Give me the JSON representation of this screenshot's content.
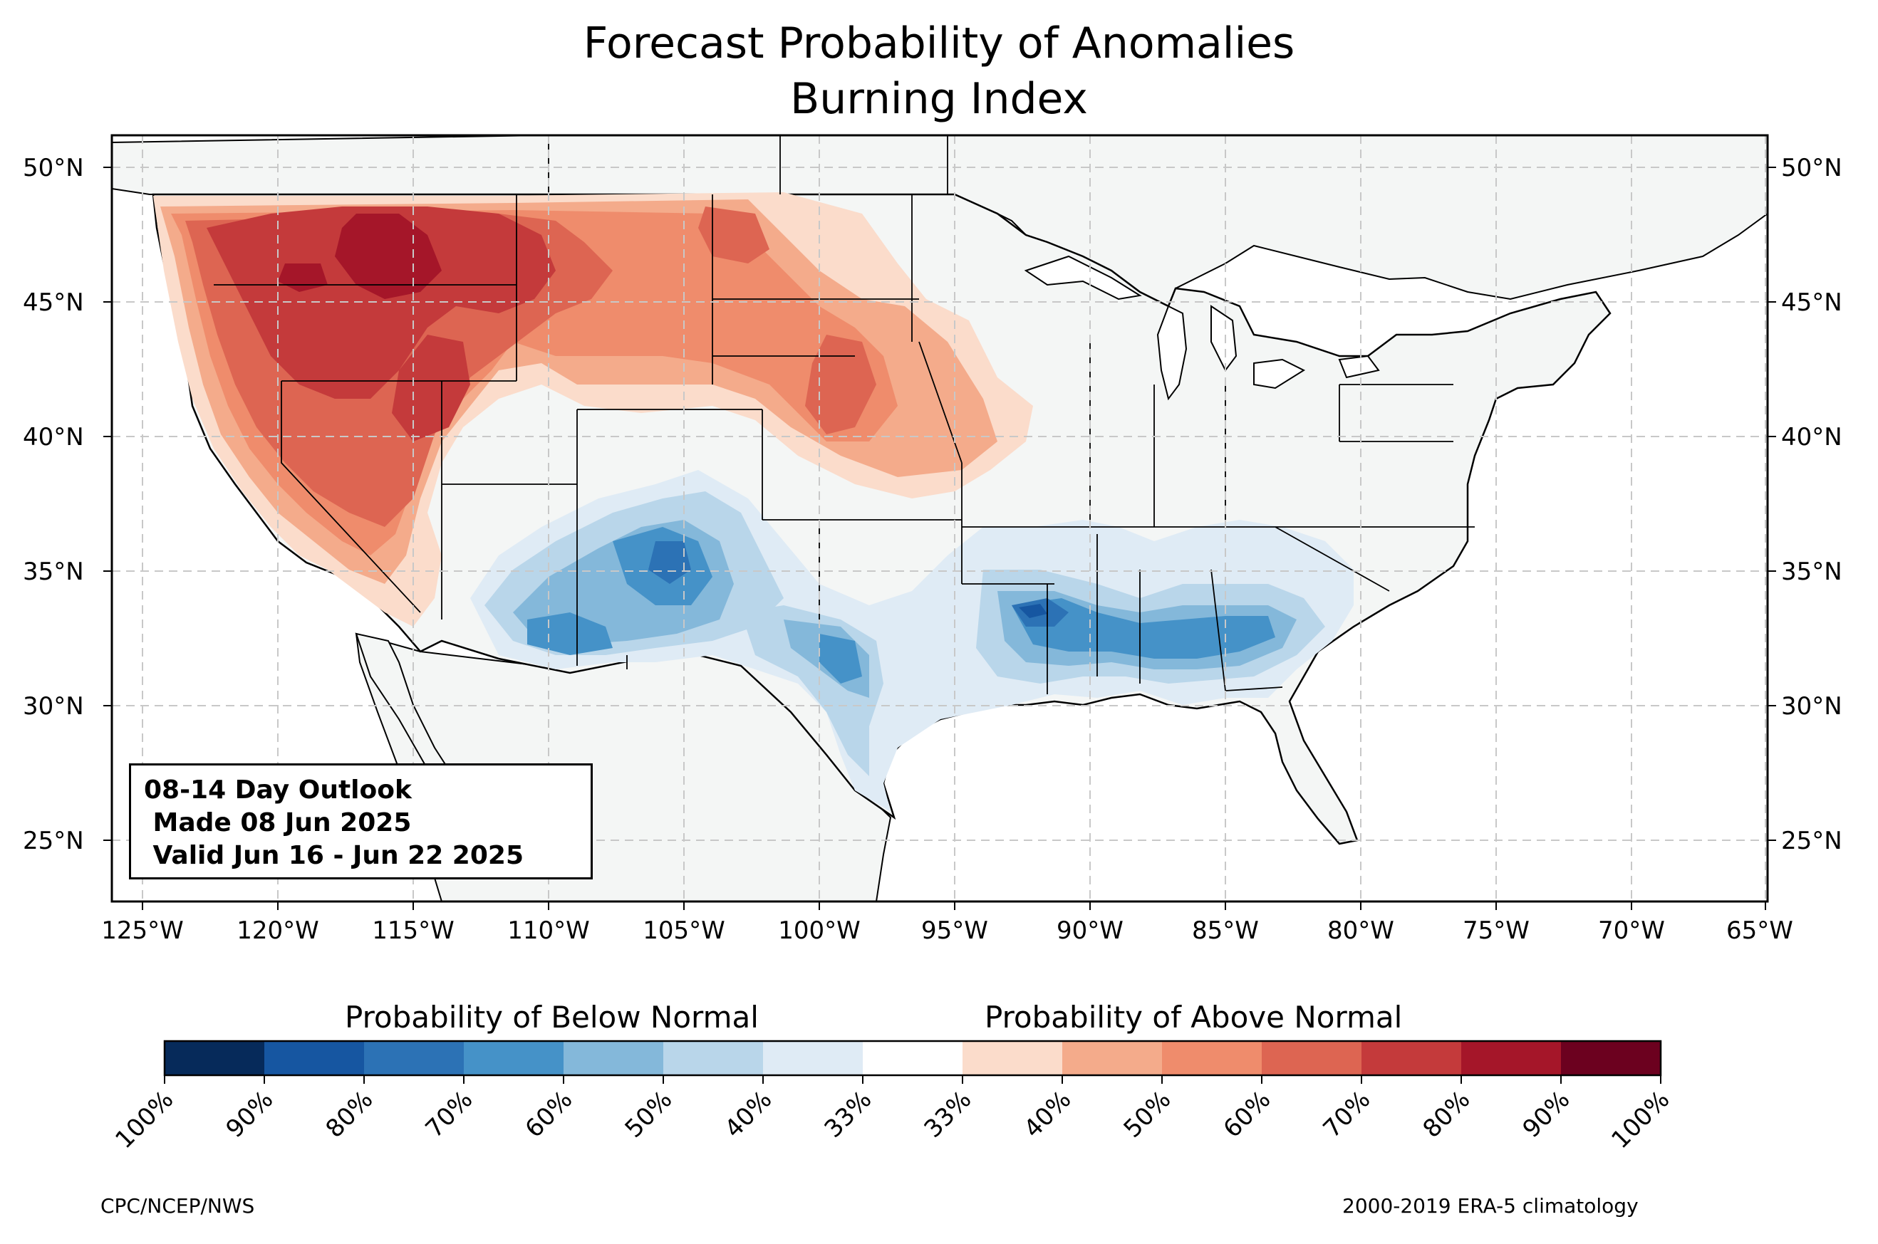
{
  "title": {
    "line1": "Forecast Probability of Anomalies",
    "line2": "Burning Index"
  },
  "map": {
    "lon_ticks": [
      "125°W",
      "120°W",
      "115°W",
      "110°W",
      "105°W",
      "100°W",
      "95°W",
      "90°W",
      "85°W",
      "80°W",
      "75°W",
      "70°W",
      "65°W"
    ],
    "lat_ticks": [
      "50°N",
      "45°N",
      "40°N",
      "35°N",
      "30°N",
      "25°N"
    ],
    "land_color": "#f4f6f5",
    "border_color": "#000000",
    "grid": "dashed"
  },
  "outlook": {
    "line1": "08-14 Day Outlook",
    "line2": " Made 08 Jun 2025",
    "line3": " Valid Jun 16 - Jun 22 2025"
  },
  "colorbar": {
    "below_label": "Probability of Below Normal",
    "above_label": "Probability of Above Normal",
    "tick_labels": [
      "100%",
      "90%",
      "80%",
      "70%",
      "60%",
      "50%",
      "40%",
      "33%",
      "33%",
      "40%",
      "50%",
      "60%",
      "70%",
      "80%",
      "90%",
      "100%"
    ],
    "colors": [
      "#062a5a",
      "#1656a1",
      "#2c72b5",
      "#4592c8",
      "#84b8da",
      "#b9d6ea",
      "#dfebf5",
      "#ffffff",
      "#fbdccb",
      "#f4ab8b",
      "#ef8c6c",
      "#dd6552",
      "#c43a3b",
      "#a51629",
      "#6c011f"
    ]
  },
  "footer": {
    "left": "CPC/NCEP/NWS",
    "right": "2000-2019 ERA-5 climatology"
  }
}
